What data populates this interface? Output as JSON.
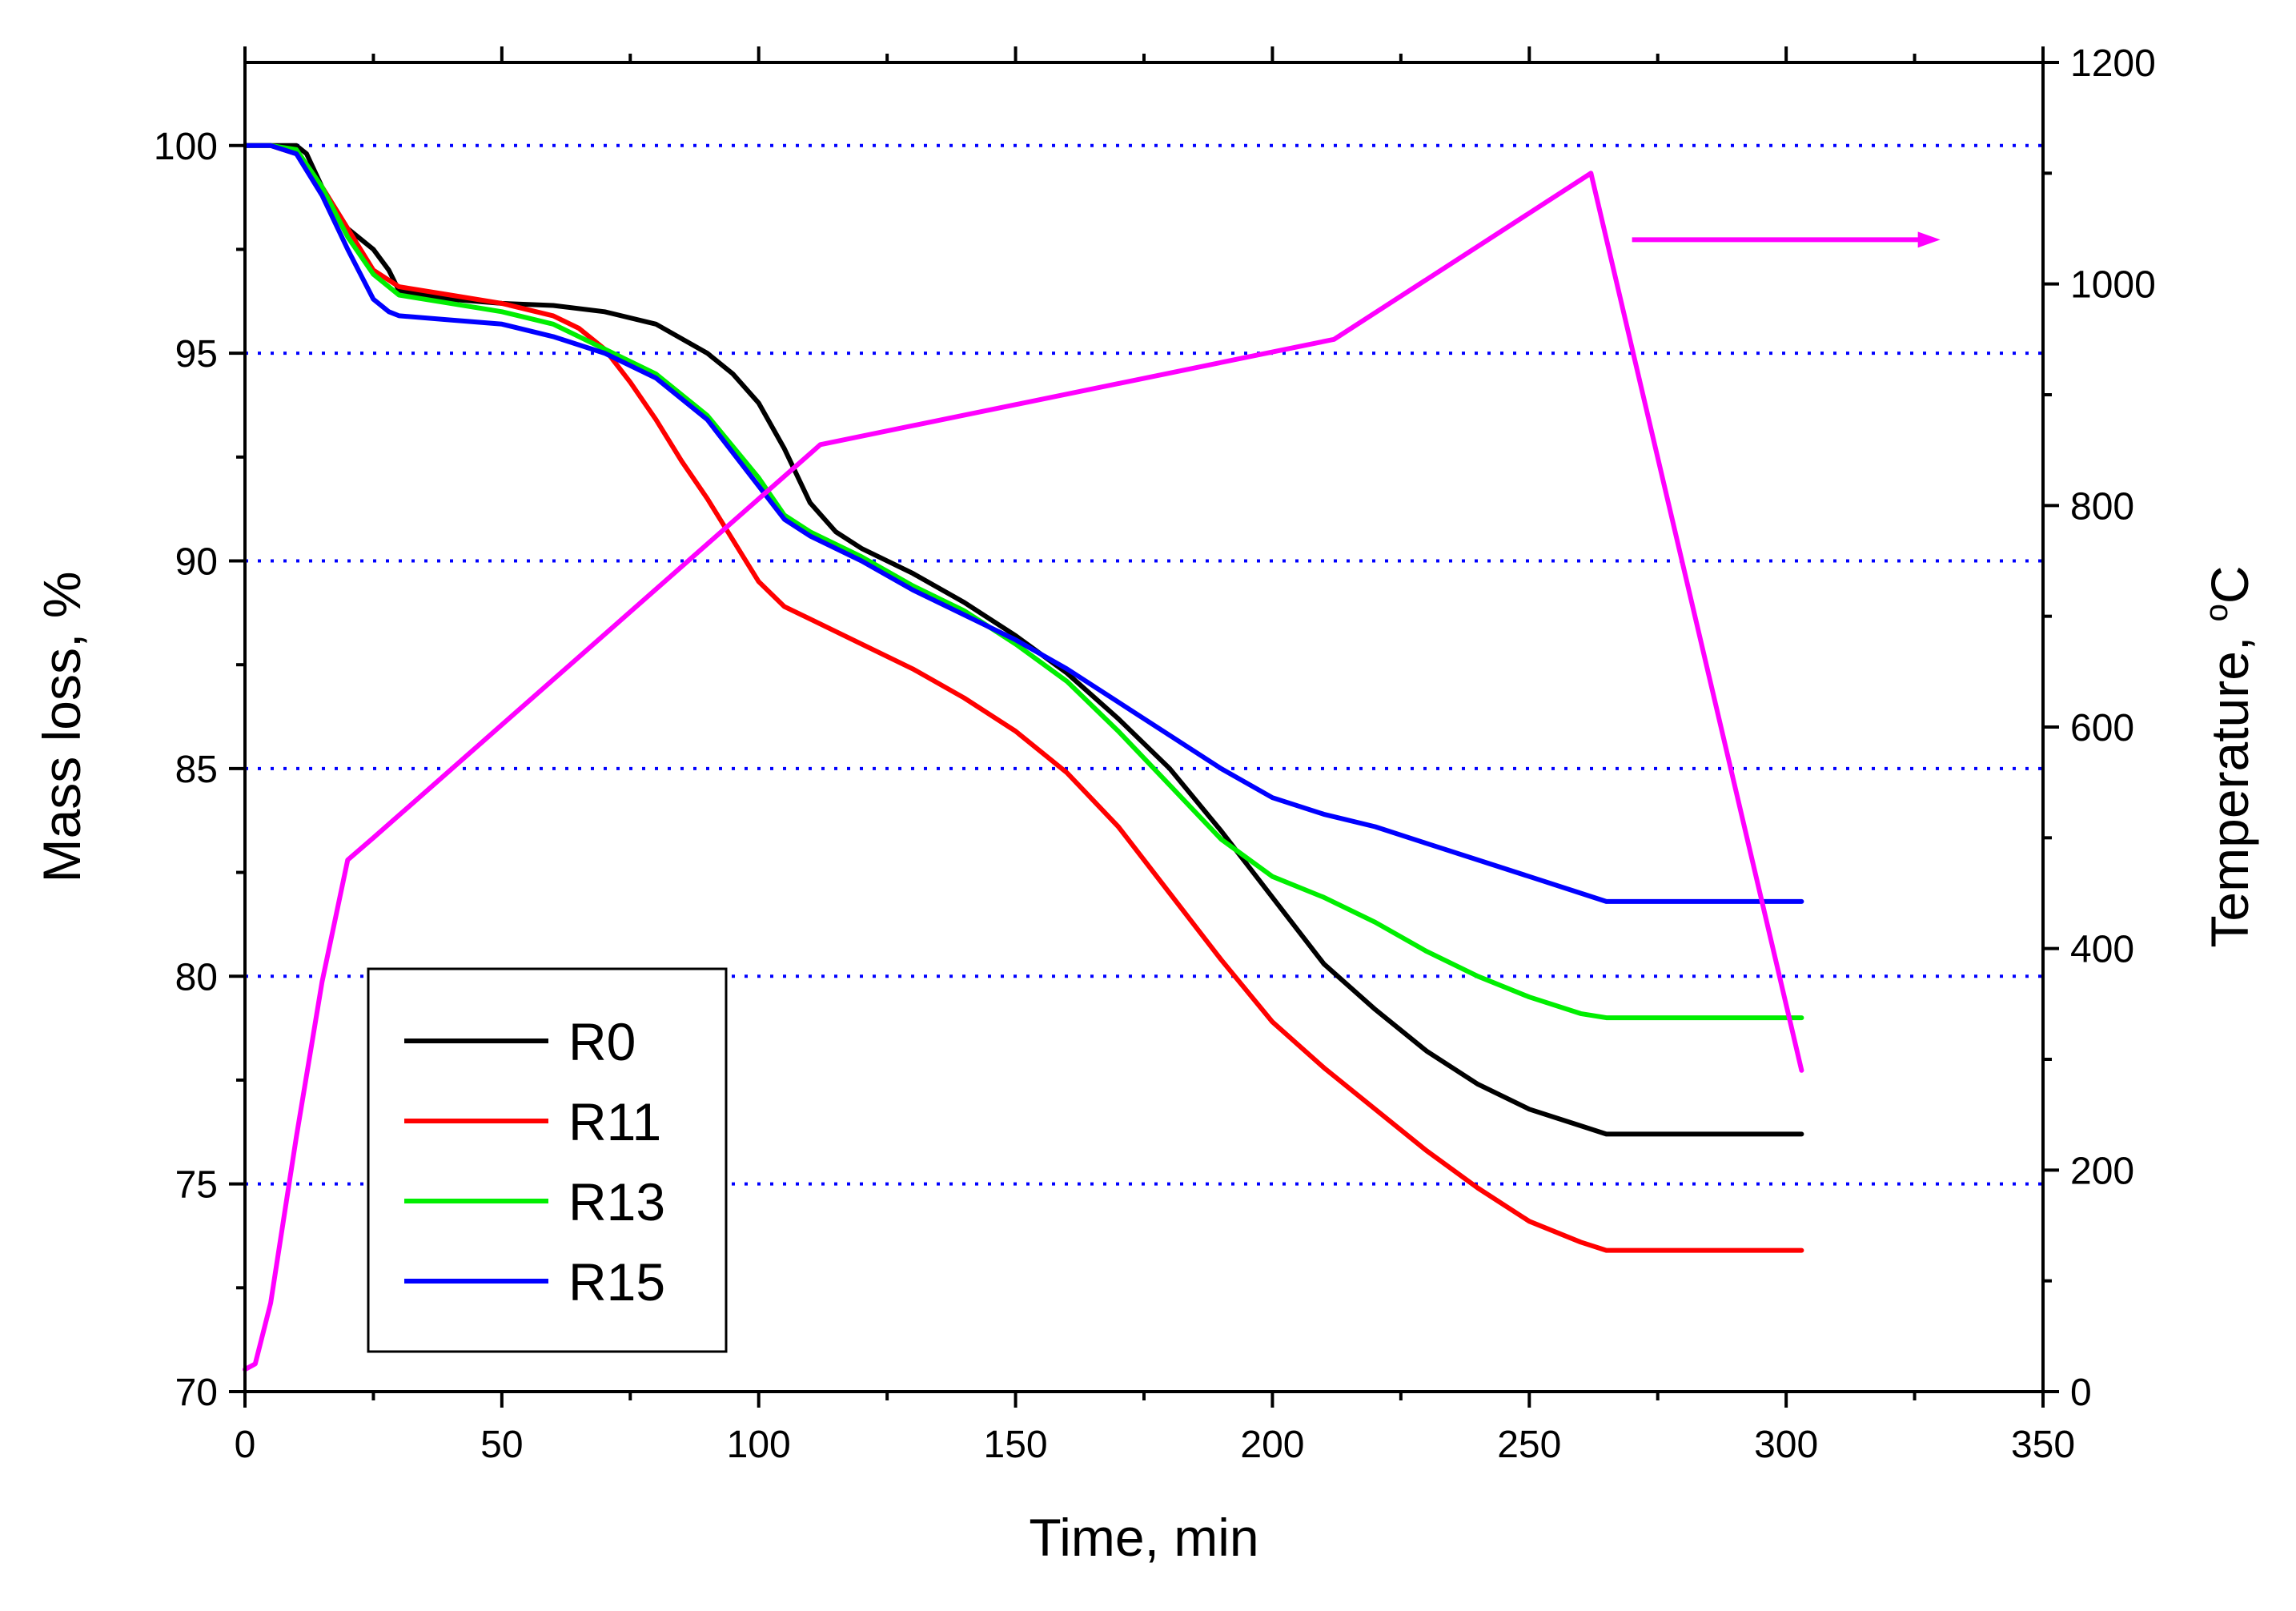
{
  "chart_data": {
    "type": "line",
    "xlabel": "Time, min",
    "ylabel": "Mass loss, %",
    "y2label_prefix": "Temperature, ",
    "y2label_degree": "o",
    "y2label_unit": "C",
    "xlim": [
      0,
      350
    ],
    "ylim": [
      70,
      102
    ],
    "y2lim": [
      0,
      1200
    ],
    "x_ticks": [
      0,
      50,
      100,
      150,
      200,
      250,
      300,
      350
    ],
    "y_ticks": [
      70,
      75,
      80,
      85,
      90,
      95,
      100
    ],
    "y2_ticks": [
      0,
      200,
      400,
      600,
      800,
      1000,
      1200
    ],
    "gridlines_y": [
      75,
      80,
      85,
      90,
      95,
      100
    ],
    "legend_position": "bottom-left",
    "series": [
      {
        "name": "R0",
        "color": "#000000",
        "axis": "left",
        "x": [
          0,
          5,
          10,
          12,
          15,
          20,
          25,
          28,
          30,
          40,
          50,
          60,
          70,
          80,
          90,
          95,
          100,
          105,
          110,
          115,
          120,
          130,
          140,
          150,
          160,
          170,
          180,
          190,
          200,
          210,
          220,
          230,
          240,
          250,
          260,
          265,
          270,
          280,
          290,
          303
        ],
        "values": [
          100,
          100,
          100,
          99.8,
          99.0,
          98.0,
          97.5,
          97.0,
          96.5,
          96.3,
          96.2,
          96.15,
          96.0,
          95.7,
          95.0,
          94.5,
          93.8,
          92.7,
          91.4,
          90.7,
          90.3,
          89.7,
          89.0,
          88.2,
          87.3,
          86.2,
          85.0,
          83.5,
          81.9,
          80.3,
          79.2,
          78.2,
          77.4,
          76.8,
          76.4,
          76.2,
          76.2,
          76.2,
          76.2,
          76.2
        ]
      },
      {
        "name": "R11",
        "color": "#ff0000",
        "axis": "left",
        "x": [
          0,
          5,
          10,
          15,
          20,
          25,
          30,
          40,
          50,
          60,
          65,
          70,
          75,
          80,
          85,
          90,
          95,
          100,
          105,
          110,
          120,
          130,
          140,
          150,
          160,
          170,
          180,
          190,
          200,
          210,
          220,
          230,
          240,
          250,
          260,
          265,
          270,
          280,
          290,
          303
        ],
        "values": [
          100,
          100,
          99.8,
          99.0,
          98.0,
          97.0,
          96.6,
          96.4,
          96.2,
          95.9,
          95.6,
          95.1,
          94.3,
          93.4,
          92.4,
          91.5,
          90.5,
          89.5,
          88.9,
          88.6,
          88.0,
          87.4,
          86.7,
          85.9,
          84.9,
          83.6,
          82.0,
          80.4,
          78.9,
          77.8,
          76.8,
          75.8,
          74.9,
          74.1,
          73.6,
          73.4,
          73.4,
          73.4,
          73.4,
          73.4
        ]
      },
      {
        "name": "R13",
        "color": "#00ee00",
        "axis": "left",
        "x": [
          0,
          5,
          10,
          15,
          20,
          25,
          30,
          40,
          50,
          60,
          70,
          80,
          90,
          100,
          105,
          110,
          120,
          130,
          140,
          150,
          160,
          170,
          180,
          190,
          200,
          210,
          220,
          230,
          240,
          250,
          260,
          265,
          270,
          280,
          290,
          303
        ],
        "values": [
          100,
          100,
          99.9,
          99.0,
          97.8,
          96.9,
          96.4,
          96.2,
          96.0,
          95.7,
          95.1,
          94.5,
          93.5,
          92.0,
          91.1,
          90.7,
          90.1,
          89.4,
          88.8,
          88.0,
          87.1,
          85.9,
          84.6,
          83.3,
          82.4,
          81.9,
          81.3,
          80.6,
          80.0,
          79.5,
          79.1,
          79.0,
          79.0,
          79.0,
          79.0,
          79.0
        ]
      },
      {
        "name": "R15",
        "color": "#0000ff",
        "axis": "left",
        "x": [
          0,
          5,
          10,
          15,
          20,
          25,
          28,
          30,
          40,
          50,
          60,
          70,
          80,
          90,
          100,
          105,
          110,
          120,
          130,
          140,
          150,
          160,
          170,
          180,
          190,
          200,
          210,
          220,
          230,
          240,
          250,
          260,
          265,
          270,
          280,
          290,
          303
        ],
        "values": [
          100,
          100,
          99.8,
          98.8,
          97.5,
          96.3,
          96.0,
          95.9,
          95.8,
          95.7,
          95.4,
          95.0,
          94.4,
          93.4,
          91.8,
          91.0,
          90.6,
          90.0,
          89.3,
          88.7,
          88.1,
          87.4,
          86.6,
          85.8,
          85.0,
          84.3,
          83.9,
          83.6,
          83.2,
          82.8,
          82.4,
          82.0,
          81.8,
          81.8,
          81.8,
          81.8,
          81.8
        ]
      },
      {
        "name": "Temperature",
        "color": "#ff00ff",
        "axis": "right",
        "x": [
          0,
          2,
          5,
          10,
          15,
          20,
          25,
          112,
          212,
          262,
          303
        ],
        "values": [
          20,
          25,
          80,
          230,
          370,
          480,
          500,
          855,
          950,
          1100,
          290
        ]
      }
    ],
    "annotation": {
      "type": "arrow",
      "points_to": "right-axis",
      "series": "Temperature",
      "x_start": 270,
      "x_end": 330,
      "y2_value": 1040
    }
  }
}
